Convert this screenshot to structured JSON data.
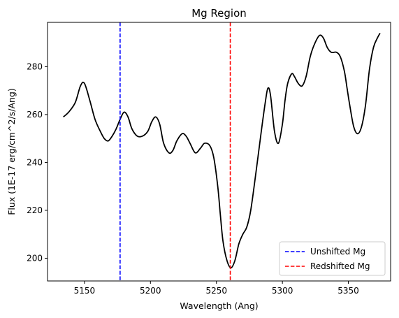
{
  "chart_data": {
    "type": "line",
    "title": "Mg Region",
    "xlabel": "Wavelength (Ang)",
    "ylabel": "Flux (1E-17 erg/cm^2/s/Ang)",
    "xlim": [
      5122,
      5382
    ],
    "ylim": [
      190.5,
      298.5
    ],
    "xticks": [
      5150,
      5200,
      5250,
      5300,
      5350
    ],
    "yticks": [
      200,
      220,
      240,
      260,
      280
    ],
    "grid": false,
    "legend_position": "lower-right",
    "series": [
      {
        "color": "#000000",
        "style": "solid",
        "x": [
          5134,
          5138,
          5143,
          5147,
          5150,
          5154,
          5158,
          5162,
          5165,
          5168,
          5171,
          5174,
          5177,
          5180,
          5183,
          5186,
          5190,
          5194,
          5198,
          5201,
          5204,
          5207,
          5210,
          5214,
          5217,
          5220,
          5224,
          5227,
          5230,
          5234,
          5238,
          5241,
          5245,
          5248,
          5251,
          5253,
          5255,
          5258,
          5261,
          5264,
          5267,
          5270,
          5273,
          5276,
          5280,
          5284,
          5287,
          5289,
          5291,
          5294,
          5297,
          5300,
          5302,
          5304,
          5307,
          5309,
          5312,
          5315,
          5318,
          5321,
          5324,
          5328,
          5331,
          5334,
          5337,
          5341,
          5344,
          5347,
          5349,
          5351,
          5354,
          5357,
          5360,
          5363,
          5366,
          5369,
          5372,
          5374
        ],
        "y": [
          259,
          261,
          265,
          272,
          273,
          266,
          258,
          253,
          250,
          249,
          251,
          254,
          258,
          261,
          259,
          254,
          251,
          251,
          253,
          257,
          259,
          256,
          248,
          244,
          245,
          249,
          252,
          251,
          248,
          244,
          246,
          248,
          247,
          242,
          230,
          218,
          207,
          199,
          196,
          199,
          206,
          210,
          213,
          220,
          236,
          253,
          265,
          271,
          268,
          253,
          248,
          256,
          266,
          273,
          277,
          276,
          273,
          272,
          276,
          284,
          289,
          293,
          292,
          288,
          286,
          286,
          284,
          278,
          271,
          264,
          255,
          252,
          255,
          264,
          279,
          288,
          292,
          294
        ]
      }
    ],
    "vlines": [
      {
        "name": "Unshifted Mg",
        "x": 5177,
        "color": "#0000ff",
        "style": "dashed"
      },
      {
        "name": "Redshifted Mg",
        "x": 5260.5,
        "color": "#ff0000",
        "style": "dashed"
      }
    ]
  }
}
